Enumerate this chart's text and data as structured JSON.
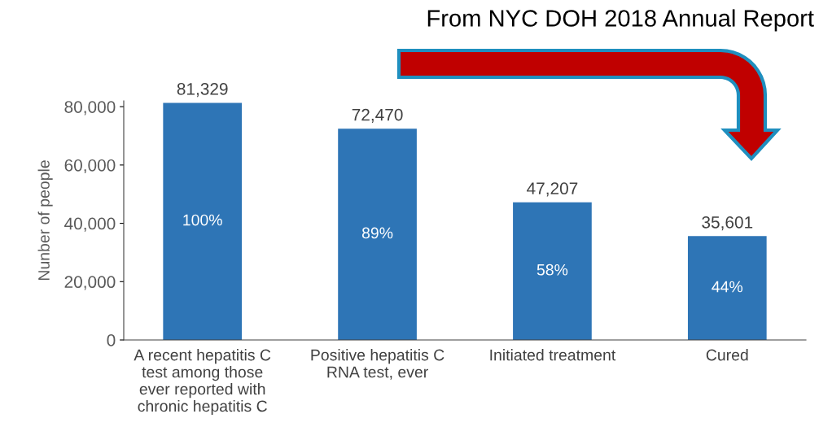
{
  "chart_data": {
    "type": "bar",
    "title": "From NYC DOH 2018 Annual Report",
    "ylabel": "Nunber of people",
    "categories": [
      "A recent hepatitis C\ntest among those\never reported with\nchronic hepatitis C",
      "Positive hepatitis C\nRNA test, ever",
      "Initiated treatment",
      "Cured"
    ],
    "values": [
      81329,
      72470,
      47207,
      35601
    ],
    "color": "#2e75b6",
    "value_labels": [
      "81,329",
      "72,470",
      "47,207",
      "35,601"
    ],
    "annotations": [
      "100%",
      "89%",
      "58%",
      "44%"
    ],
    "ylim": [
      0,
      82000
    ],
    "yticks": [
      0,
      {
        "value": 20000,
        "label": "20,000"
      },
      {
        "value": 40000,
        "label": "40,000"
      },
      {
        "value": 60000,
        "label": "60,000"
      },
      {
        "value": 80000,
        "label": "80,000"
      }
    ],
    "grid": false,
    "legend": false
  }
}
